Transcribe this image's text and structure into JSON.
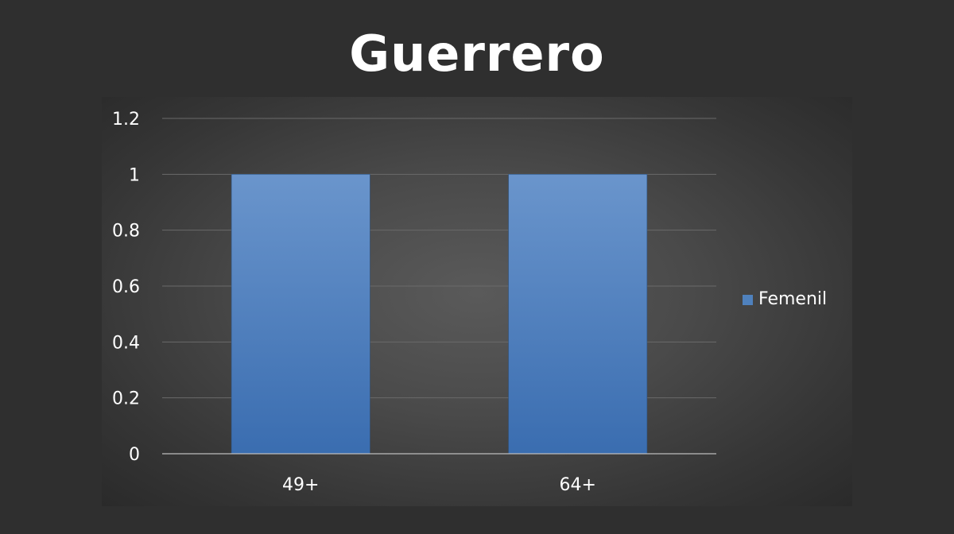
{
  "chart_data": {
    "type": "bar",
    "title": "Guerrero",
    "categories": [
      "49+",
      "64+"
    ],
    "series": [
      {
        "name": "Femenil",
        "values": [
          1,
          1
        ]
      }
    ],
    "ylim": [
      0,
      1.2
    ],
    "yticks": [
      "0",
      "0.2",
      "0.4",
      "0.6",
      "0.8",
      "1",
      "1.2"
    ],
    "xlabel": "",
    "ylabel": "",
    "grid": true,
    "legend_position": "right",
    "colors": {
      "bar_top": "#6a95cc",
      "bar_bottom": "#3a6db0",
      "legend_swatch": "#4f81bd",
      "gridline": "#6a6a6a",
      "axis_line": "#bdbdbd",
      "text": "#ffffff",
      "background": "#2f2f2f"
    }
  }
}
